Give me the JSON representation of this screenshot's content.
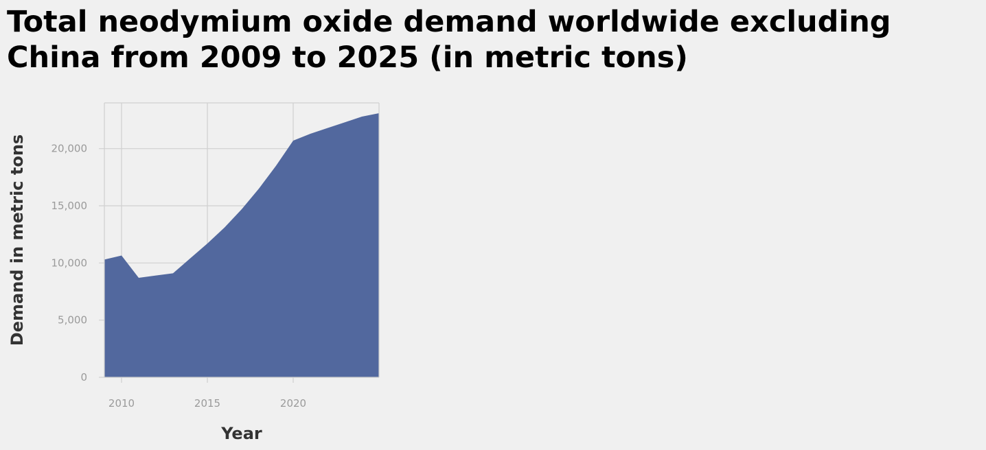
{
  "chart_data": {
    "type": "area",
    "title": "Total neodymium oxide demand worldwide excluding China from 2009 to 2025 (in metric tons)",
    "xlabel": "Year",
    "ylabel": "Demand in metric tons",
    "x": [
      2009,
      2010,
      2011,
      2012,
      2013,
      2014,
      2015,
      2016,
      2017,
      2018,
      2019,
      2020,
      2021,
      2022,
      2023,
      2024,
      2025
    ],
    "values": [
      10300,
      10650,
      8700,
      8900,
      9100,
      10400,
      11700,
      13100,
      14700,
      16500,
      18500,
      20700,
      21300,
      21800,
      22300,
      22800,
      23100
    ],
    "xlim": [
      2009,
      2025
    ],
    "ylim": [
      0,
      24000
    ],
    "x_ticks": [
      2010,
      2015,
      2020
    ],
    "x_tick_labels": [
      "2010",
      "2015",
      "2020"
    ],
    "y_ticks": [
      0,
      5000,
      10000,
      15000,
      20000
    ],
    "y_tick_labels": [
      "0",
      "5,000",
      "10,000",
      "15,000",
      "20,000"
    ],
    "fill_color": "#52689e",
    "grid": true,
    "legend": "none"
  }
}
